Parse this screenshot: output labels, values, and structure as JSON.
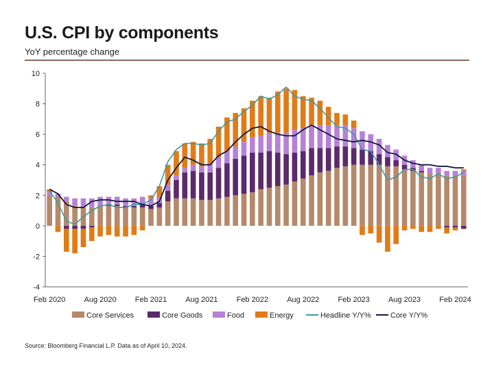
{
  "title": "U.S. CPI by components",
  "subtitle": "YoY percentage change",
  "source": "Source: Bloomberg Financial L.P. Data as of April 10, 2024.",
  "colors": {
    "core_services": "#b5896a",
    "core_goods": "#5b2a6b",
    "food": "#b781d6",
    "energy": "#e07b18",
    "headline": "#3a9aa8",
    "core": "#111a3d",
    "rule": "#8a6a55"
  },
  "chart_data": {
    "type": "bar",
    "stacked": true,
    "ylim": [
      -4,
      10
    ],
    "yticks": [
      -4,
      -2,
      0,
      2,
      4,
      6,
      8,
      10
    ],
    "xtick_labels": [
      {
        "label": "Feb 2020",
        "index": 0
      },
      {
        "label": "Aug 2020",
        "index": 6
      },
      {
        "label": "Feb 2021",
        "index": 12
      },
      {
        "label": "Aug 2021",
        "index": 18
      },
      {
        "label": "Feb 2022",
        "index": 24
      },
      {
        "label": "Aug 2022",
        "index": 30
      },
      {
        "label": "Feb 2023",
        "index": 36
      },
      {
        "label": "Aug 2023",
        "index": 42
      },
      {
        "label": "Feb 2024",
        "index": 48
      }
    ],
    "categories": [
      "Feb 2020",
      "Mar 2020",
      "Apr 2020",
      "May 2020",
      "Jun 2020",
      "Jul 2020",
      "Aug 2020",
      "Sep 2020",
      "Oct 2020",
      "Nov 2020",
      "Dec 2020",
      "Jan 2021",
      "Feb 2021",
      "Mar 2021",
      "Apr 2021",
      "May 2021",
      "Jun 2021",
      "Jul 2021",
      "Aug 2021",
      "Sep 2021",
      "Oct 2021",
      "Nov 2021",
      "Dec 2021",
      "Jan 2022",
      "Feb 2022",
      "Mar 2022",
      "Apr 2022",
      "May 2022",
      "Jun 2022",
      "Jul 2022",
      "Aug 2022",
      "Sep 2022",
      "Oct 2022",
      "Nov 2022",
      "Dec 2022",
      "Jan 2023",
      "Feb 2023",
      "Mar 2023",
      "Apr 2023",
      "May 2023",
      "Jun 2023",
      "Jul 2023",
      "Aug 2023",
      "Sep 2023",
      "Oct 2023",
      "Nov 2023",
      "Dec 2023",
      "Jan 2024",
      "Feb 2024",
      "Mar 2024"
    ],
    "series": [
      {
        "name": "Core Services",
        "key": "core_services",
        "kind": "bar",
        "values": [
          2.0,
          1.9,
          1.6,
          1.3,
          1.2,
          1.2,
          1.3,
          1.3,
          1.3,
          1.2,
          1.2,
          1.2,
          1.1,
          1.2,
          1.6,
          1.8,
          1.8,
          1.8,
          1.7,
          1.7,
          1.8,
          1.9,
          2.0,
          2.1,
          2.2,
          2.4,
          2.5,
          2.6,
          2.7,
          2.9,
          3.1,
          3.3,
          3.5,
          3.6,
          3.8,
          3.9,
          4.0,
          4.0,
          4.0,
          4.0,
          3.9,
          3.9,
          3.7,
          3.6,
          3.5,
          3.4,
          3.4,
          3.3,
          3.3,
          3.3
        ]
      },
      {
        "name": "Core Goods",
        "key": "core_goods",
        "kind": "bar",
        "values": [
          0.0,
          0.0,
          -0.2,
          -0.2,
          -0.2,
          -0.1,
          0.0,
          0.1,
          0.1,
          0.1,
          0.1,
          0.2,
          0.2,
          0.3,
          0.7,
          1.2,
          1.7,
          1.8,
          1.8,
          1.8,
          2.0,
          2.2,
          2.4,
          2.5,
          2.6,
          2.4,
          2.4,
          2.2,
          2.0,
          1.9,
          1.8,
          1.8,
          1.6,
          1.5,
          1.4,
          1.3,
          1.1,
          1.0,
          0.9,
          0.7,
          0.6,
          0.4,
          0.3,
          0.2,
          0.1,
          0.0,
          0.0,
          -0.1,
          -0.1,
          -0.2
        ]
      },
      {
        "name": "Food",
        "key": "food",
        "kind": "bar",
        "values": [
          0.2,
          0.2,
          0.3,
          0.5,
          0.6,
          0.6,
          0.6,
          0.5,
          0.5,
          0.5,
          0.5,
          0.5,
          0.5,
          0.4,
          0.4,
          0.3,
          0.3,
          0.4,
          0.4,
          0.6,
          0.7,
          0.8,
          0.8,
          0.9,
          1.0,
          1.1,
          1.2,
          1.3,
          1.4,
          1.5,
          1.5,
          1.5,
          1.5,
          1.5,
          1.4,
          1.4,
          1.3,
          1.2,
          1.1,
          1.0,
          0.8,
          0.7,
          0.6,
          0.5,
          0.4,
          0.4,
          0.4,
          0.3,
          0.3,
          0.3
        ]
      },
      {
        "name": "Energy",
        "key": "energy",
        "kind": "bar",
        "values": [
          0.2,
          -0.4,
          -1.5,
          -1.6,
          -1.2,
          -0.9,
          -0.7,
          -0.6,
          -0.7,
          -0.7,
          -0.6,
          -0.3,
          0.2,
          0.7,
          1.3,
          1.6,
          1.6,
          1.5,
          1.5,
          1.6,
          2.0,
          2.2,
          2.2,
          2.2,
          2.4,
          2.6,
          2.3,
          2.7,
          2.9,
          2.6,
          2.1,
          1.8,
          1.6,
          1.2,
          0.8,
          0.7,
          0.5,
          -0.6,
          -0.5,
          -1.1,
          -1.7,
          -1.2,
          -0.3,
          -0.2,
          -0.4,
          -0.4,
          -0.2,
          -0.4,
          -0.2,
          0.1
        ]
      },
      {
        "name": "Headline Y/Y%",
        "key": "headline",
        "kind": "line",
        "values": [
          2.3,
          1.5,
          0.3,
          0.1,
          0.6,
          1.0,
          1.3,
          1.4,
          1.2,
          1.2,
          1.4,
          1.4,
          1.7,
          2.6,
          4.2,
          5.0,
          5.4,
          5.4,
          5.3,
          5.4,
          6.2,
          6.8,
          7.0,
          7.5,
          7.9,
          8.5,
          8.3,
          8.6,
          9.1,
          8.5,
          8.3,
          8.2,
          7.7,
          7.1,
          6.5,
          6.4,
          6.0,
          5.0,
          4.9,
          4.0,
          3.0,
          3.2,
          3.7,
          3.7,
          3.2,
          3.1,
          3.4,
          3.1,
          3.2,
          3.5
        ]
      },
      {
        "name": "Core Y/Y%",
        "key": "core",
        "kind": "line",
        "values": [
          2.4,
          2.1,
          1.4,
          1.2,
          1.2,
          1.6,
          1.7,
          1.7,
          1.6,
          1.6,
          1.6,
          1.4,
          1.3,
          1.6,
          3.0,
          3.8,
          4.5,
          4.3,
          4.0,
          4.0,
          4.6,
          4.9,
          5.5,
          6.0,
          6.4,
          6.5,
          6.2,
          6.0,
          5.9,
          5.9,
          6.3,
          6.6,
          6.3,
          6.0,
          5.7,
          5.6,
          5.5,
          5.6,
          5.5,
          5.3,
          4.8,
          4.7,
          4.3,
          4.1,
          4.0,
          4.0,
          3.9,
          3.9,
          3.8,
          3.8
        ]
      }
    ]
  }
}
